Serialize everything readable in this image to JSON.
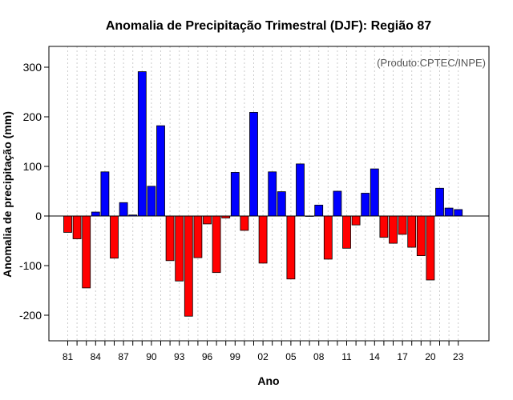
{
  "chart_data": {
    "type": "bar",
    "title": "Anomalia de Precipitação Trimestral (DJF): Região 87",
    "xlabel": "Ano",
    "ylabel": "Anomalia de precipitação (mm)",
    "credit": "(Produto:CPTEC/INPE)",
    "ylim": [
      -250,
      340
    ],
    "yticks": [
      -200,
      -100,
      0,
      100,
      200,
      300
    ],
    "years": [
      "81",
      "82",
      "83",
      "84",
      "85",
      "86",
      "87",
      "88",
      "89",
      "90",
      "91",
      "92",
      "93",
      "94",
      "95",
      "96",
      "97",
      "98",
      "99",
      "00",
      "01",
      "02",
      "03",
      "04",
      "05",
      "06",
      "07",
      "08",
      "09",
      "10",
      "11",
      "12",
      "13",
      "14",
      "15",
      "16",
      "17",
      "18",
      "19",
      "20",
      "21",
      "22",
      "23"
    ],
    "tick_labels": [
      "81",
      "84",
      "87",
      "90",
      "93",
      "96",
      "99",
      "02",
      "05",
      "08",
      "11",
      "14",
      "17",
      "20",
      "23"
    ],
    "values": [
      -33,
      -46,
      -145,
      8,
      89,
      -85,
      27,
      2,
      291,
      60,
      182,
      -90,
      -131,
      -202,
      -84,
      -16,
      -114,
      -4,
      88,
      -29,
      209,
      -95,
      89,
      49,
      -127,
      105,
      0,
      22,
      -87,
      50,
      -65,
      -18,
      46,
      95,
      -43,
      -55,
      -37,
      -63,
      -80,
      -129,
      56,
      16,
      13
    ],
    "colors": {
      "positive": "#0000ff",
      "negative": "#ff0000",
      "grid": "#cccccc",
      "zero_line": "#000000"
    }
  }
}
